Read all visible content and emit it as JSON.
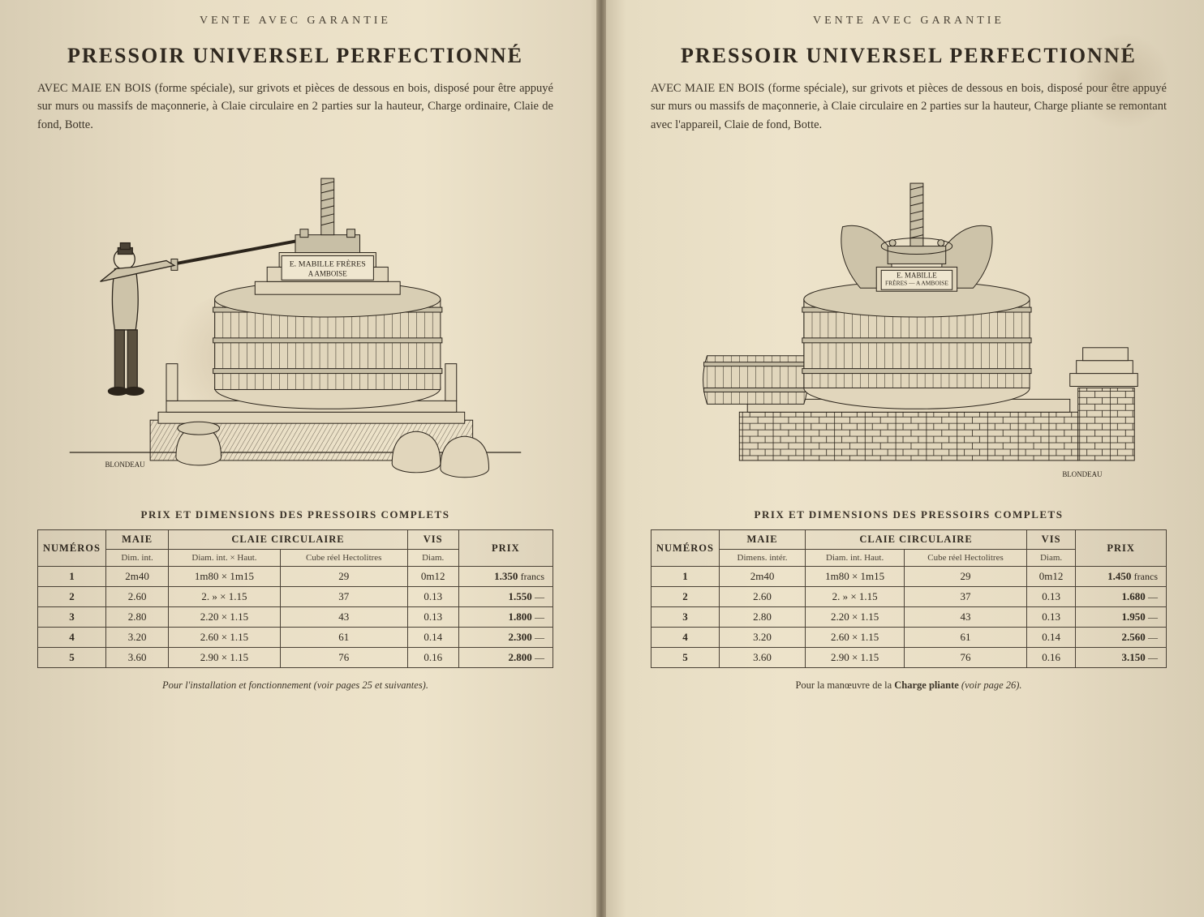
{
  "book": {
    "guarantee_line": "VENTE AVEC GARANTIE",
    "title": "PRESSOIR UNIVERSEL PERFECTIONNÉ",
    "table_caption": "PRIX ET DIMENSIONS DES PRESSOIRS COMPLETS",
    "colors": {
      "ink": "#3a3228",
      "paper_light": "#ede3ca",
      "paper_shadow": "#c9bda3",
      "rule": "#4b4236"
    }
  },
  "left": {
    "blurb": "AVEC MAIE EN BOIS (forme spéciale), sur grivots et pièces de dessous en bois, disposé pour être appuyé sur murs ou massifs de maçonnerie, à Claie circulaire en 2 parties sur la hauteur, Charge ordinaire, Claie de fond, Botte.",
    "illustration_label": "E. MABILLE FRÈRES\nA AMBOISE",
    "engraver": "BLONDEAU",
    "table": {
      "columns": [
        "NUMÉROS",
        "MAIE",
        "CLAIE CIRCULAIRE",
        "VIS",
        "PRIX"
      ],
      "sub": {
        "maie": "Dim. int.",
        "claie_dim": "Diam. int. × Haut.",
        "claie_cube": "Cube réel Hectolitres",
        "vis": "Diam."
      },
      "rows": [
        {
          "n": "1",
          "maie": "2m40",
          "claie_dim": "1m80 × 1m15",
          "cube": "29",
          "vis": "0m12",
          "prix": "1.350",
          "unit": "francs"
        },
        {
          "n": "2",
          "maie": "2.60",
          "claie_dim": "2. » × 1.15",
          "cube": "37",
          "vis": "0.13",
          "prix": "1.550",
          "unit": "—"
        },
        {
          "n": "3",
          "maie": "2.80",
          "claie_dim": "2.20 × 1.15",
          "cube": "43",
          "vis": "0.13",
          "prix": "1.800",
          "unit": "—"
        },
        {
          "n": "4",
          "maie": "3.20",
          "claie_dim": "2.60 × 1.15",
          "cube": "61",
          "vis": "0.14",
          "prix": "2.300",
          "unit": "—"
        },
        {
          "n": "5",
          "maie": "3.60",
          "claie_dim": "2.90 × 1.15",
          "cube": "76",
          "vis": "0.16",
          "prix": "2.800",
          "unit": "—"
        }
      ]
    },
    "footnote": "Pour l'installation et fonctionnement (voir pages 25 et suivantes)."
  },
  "right": {
    "blurb": "AVEC MAIE EN BOIS (forme spéciale), sur grivots et pièces de dessous en bois, disposé pour être appuyé sur murs ou massifs de maçonnerie, à Claie circulaire en 2 parties sur la hauteur, Charge pliante se remontant avec l'appareil, Claie de fond, Botte.",
    "illustration_label": "E. MABILLE\nFRÈRES\nA AMBOISE",
    "engraver": "BLONDEAU",
    "table": {
      "columns": [
        "NUMÉROS",
        "MAIE",
        "CLAIE CIRCULAIRE",
        "VIS",
        "PRIX"
      ],
      "sub": {
        "maie": "Dimens. intér.",
        "claie_dim": "Diam. int. Haut.",
        "claie_cube": "Cube réel Hectolitres",
        "vis": "Diam."
      },
      "rows": [
        {
          "n": "1",
          "maie": "2m40",
          "claie_dim": "1m80 × 1m15",
          "cube": "29",
          "vis": "0m12",
          "prix": "1.450",
          "unit": "francs"
        },
        {
          "n": "2",
          "maie": "2.60",
          "claie_dim": "2. » × 1.15",
          "cube": "37",
          "vis": "0.13",
          "prix": "1.680",
          "unit": "—"
        },
        {
          "n": "3",
          "maie": "2.80",
          "claie_dim": "2.20 × 1.15",
          "cube": "43",
          "vis": "0.13",
          "prix": "1.950",
          "unit": "—"
        },
        {
          "n": "4",
          "maie": "3.20",
          "claie_dim": "2.60 × 1.15",
          "cube": "61",
          "vis": "0.14",
          "prix": "2.560",
          "unit": "—"
        },
        {
          "n": "5",
          "maie": "3.60",
          "claie_dim": "2.90 × 1.15",
          "cube": "76",
          "vis": "0.16",
          "prix": "3.150",
          "unit": "—"
        }
      ]
    },
    "footnote_prefix": "Pour la manœuvre de la ",
    "footnote_bold": "Charge pliante",
    "footnote_suffix": " (voir page 26)."
  },
  "engraving_style": {
    "stroke": "#2b241b",
    "stroke_width": 1.1,
    "hatch_color": "#3a3228",
    "wood_fill": "#e1d6bc",
    "iron_fill": "#c8bfa6",
    "label_bg": "#efe6cf",
    "font_family": "Georgia, 'Times New Roman', serif",
    "label_fontsize": 11
  }
}
